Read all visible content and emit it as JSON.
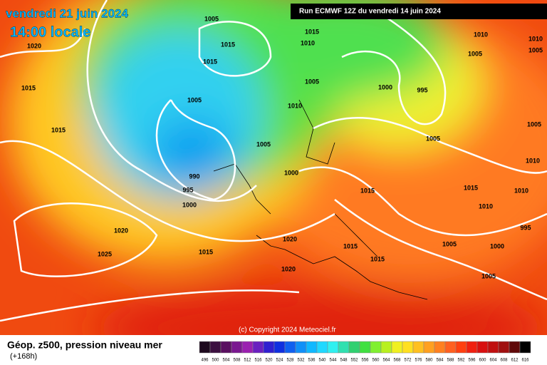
{
  "header": {
    "date": "vendredi 21 juin 2024",
    "time": "14:00 locale",
    "run": "Run ECMWF 12Z du vendredi 14 juin 2024"
  },
  "isobar_labels": [
    "1005",
    "1015",
    "1015",
    "1015",
    "1010",
    "1010",
    "1005",
    "1010",
    "1005",
    "1020",
    "1015",
    "1005",
    "1005",
    "1000",
    "995",
    "1010",
    "1005",
    "1015",
    "1005",
    "1000",
    "990",
    "995",
    "1000",
    "1015",
    "1015",
    "1010",
    "1010",
    "1010",
    "1005",
    "1020",
    "1025",
    "1015",
    "1020",
    "1015",
    "1015",
    "1005",
    "1000",
    "995",
    "1020",
    "1005"
  ],
  "copyright": "(c) Copyright 2024 Meteociel.fr",
  "footer": {
    "title": "Géop. z500, pression niveau mer",
    "lead": "(+168h)"
  },
  "legend": {
    "values": [
      496,
      500,
      504,
      508,
      512,
      516,
      520,
      524,
      528,
      532,
      536,
      540,
      544,
      548,
      552,
      556,
      560,
      564,
      568,
      572,
      576,
      580,
      584,
      588,
      592,
      596,
      600,
      604,
      608,
      612,
      616
    ],
    "colors": [
      "#1e0a1e",
      "#3c1040",
      "#5a1060",
      "#7a1890",
      "#9a20b0",
      "#6a20c0",
      "#3020d0",
      "#1030e0",
      "#1060f0",
      "#1090f8",
      "#10b8ff",
      "#20d8ff",
      "#30f0f0",
      "#30e0b0",
      "#30d070",
      "#40e040",
      "#80f030",
      "#b8f020",
      "#f0f020",
      "#ffe020",
      "#ffc020",
      "#ffa020",
      "#ff8020",
      "#ff6020",
      "#ff4010",
      "#f02010",
      "#d81010",
      "#c01010",
      "#a01010",
      "#600808",
      "#000000"
    ]
  }
}
